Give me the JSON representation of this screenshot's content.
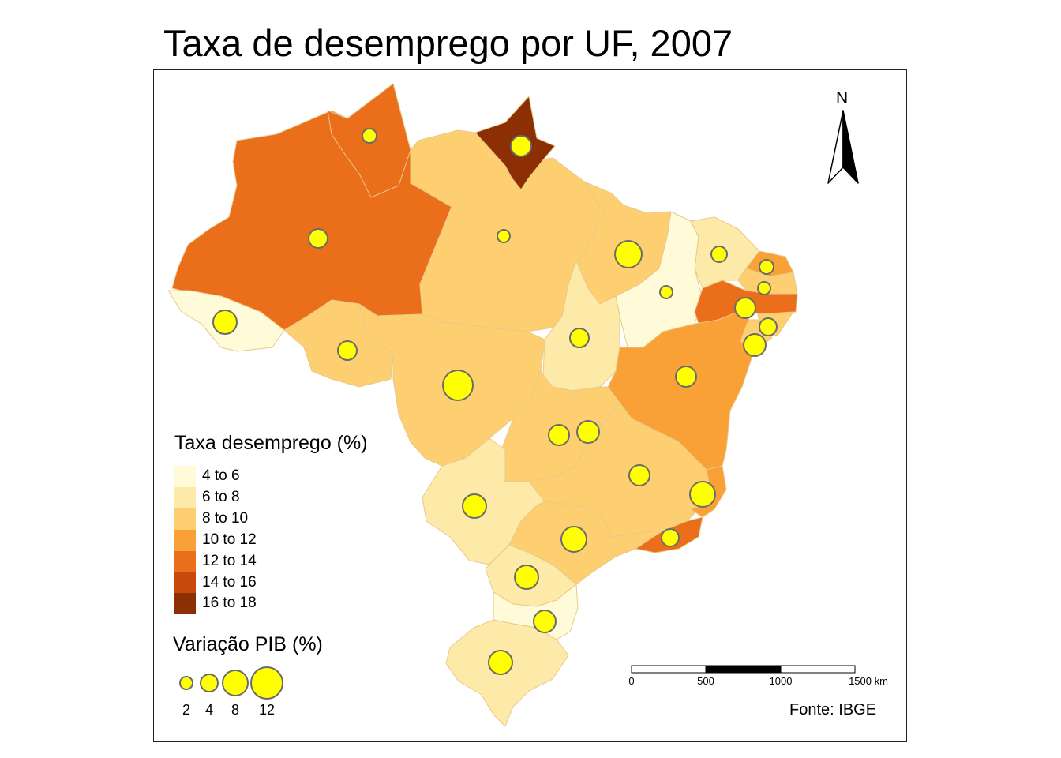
{
  "title": "Taxa de desemprego por UF, 2007",
  "map": {
    "north_label": "N",
    "source_note": "Fonte: IBGE",
    "scale_bar": {
      "ticks": [
        "0",
        "500",
        "1000",
        "1500 km"
      ]
    },
    "choropleth_legend": {
      "title": "Taxa desemprego (%)",
      "classes": [
        {
          "label": "4 to 6",
          "color": "#fffbd9"
        },
        {
          "label": "6 to 8",
          "color": "#feeaa8"
        },
        {
          "label": "8 to 10",
          "color": "#fdcf71"
        },
        {
          "label": "10 to 12",
          "color": "#f9a037"
        },
        {
          "label": "12 to 14",
          "color": "#eb6f1b"
        },
        {
          "label": "14 to 16",
          "color": "#c9490c"
        },
        {
          "label": "16 to 18",
          "color": "#8c2f04"
        }
      ]
    },
    "bubble_legend": {
      "title": "Variação PIB (%)",
      "values": [
        "2",
        "4",
        "8",
        "12"
      ],
      "fill": "#ffff00",
      "stroke": "#6b6b6b"
    }
  }
}
